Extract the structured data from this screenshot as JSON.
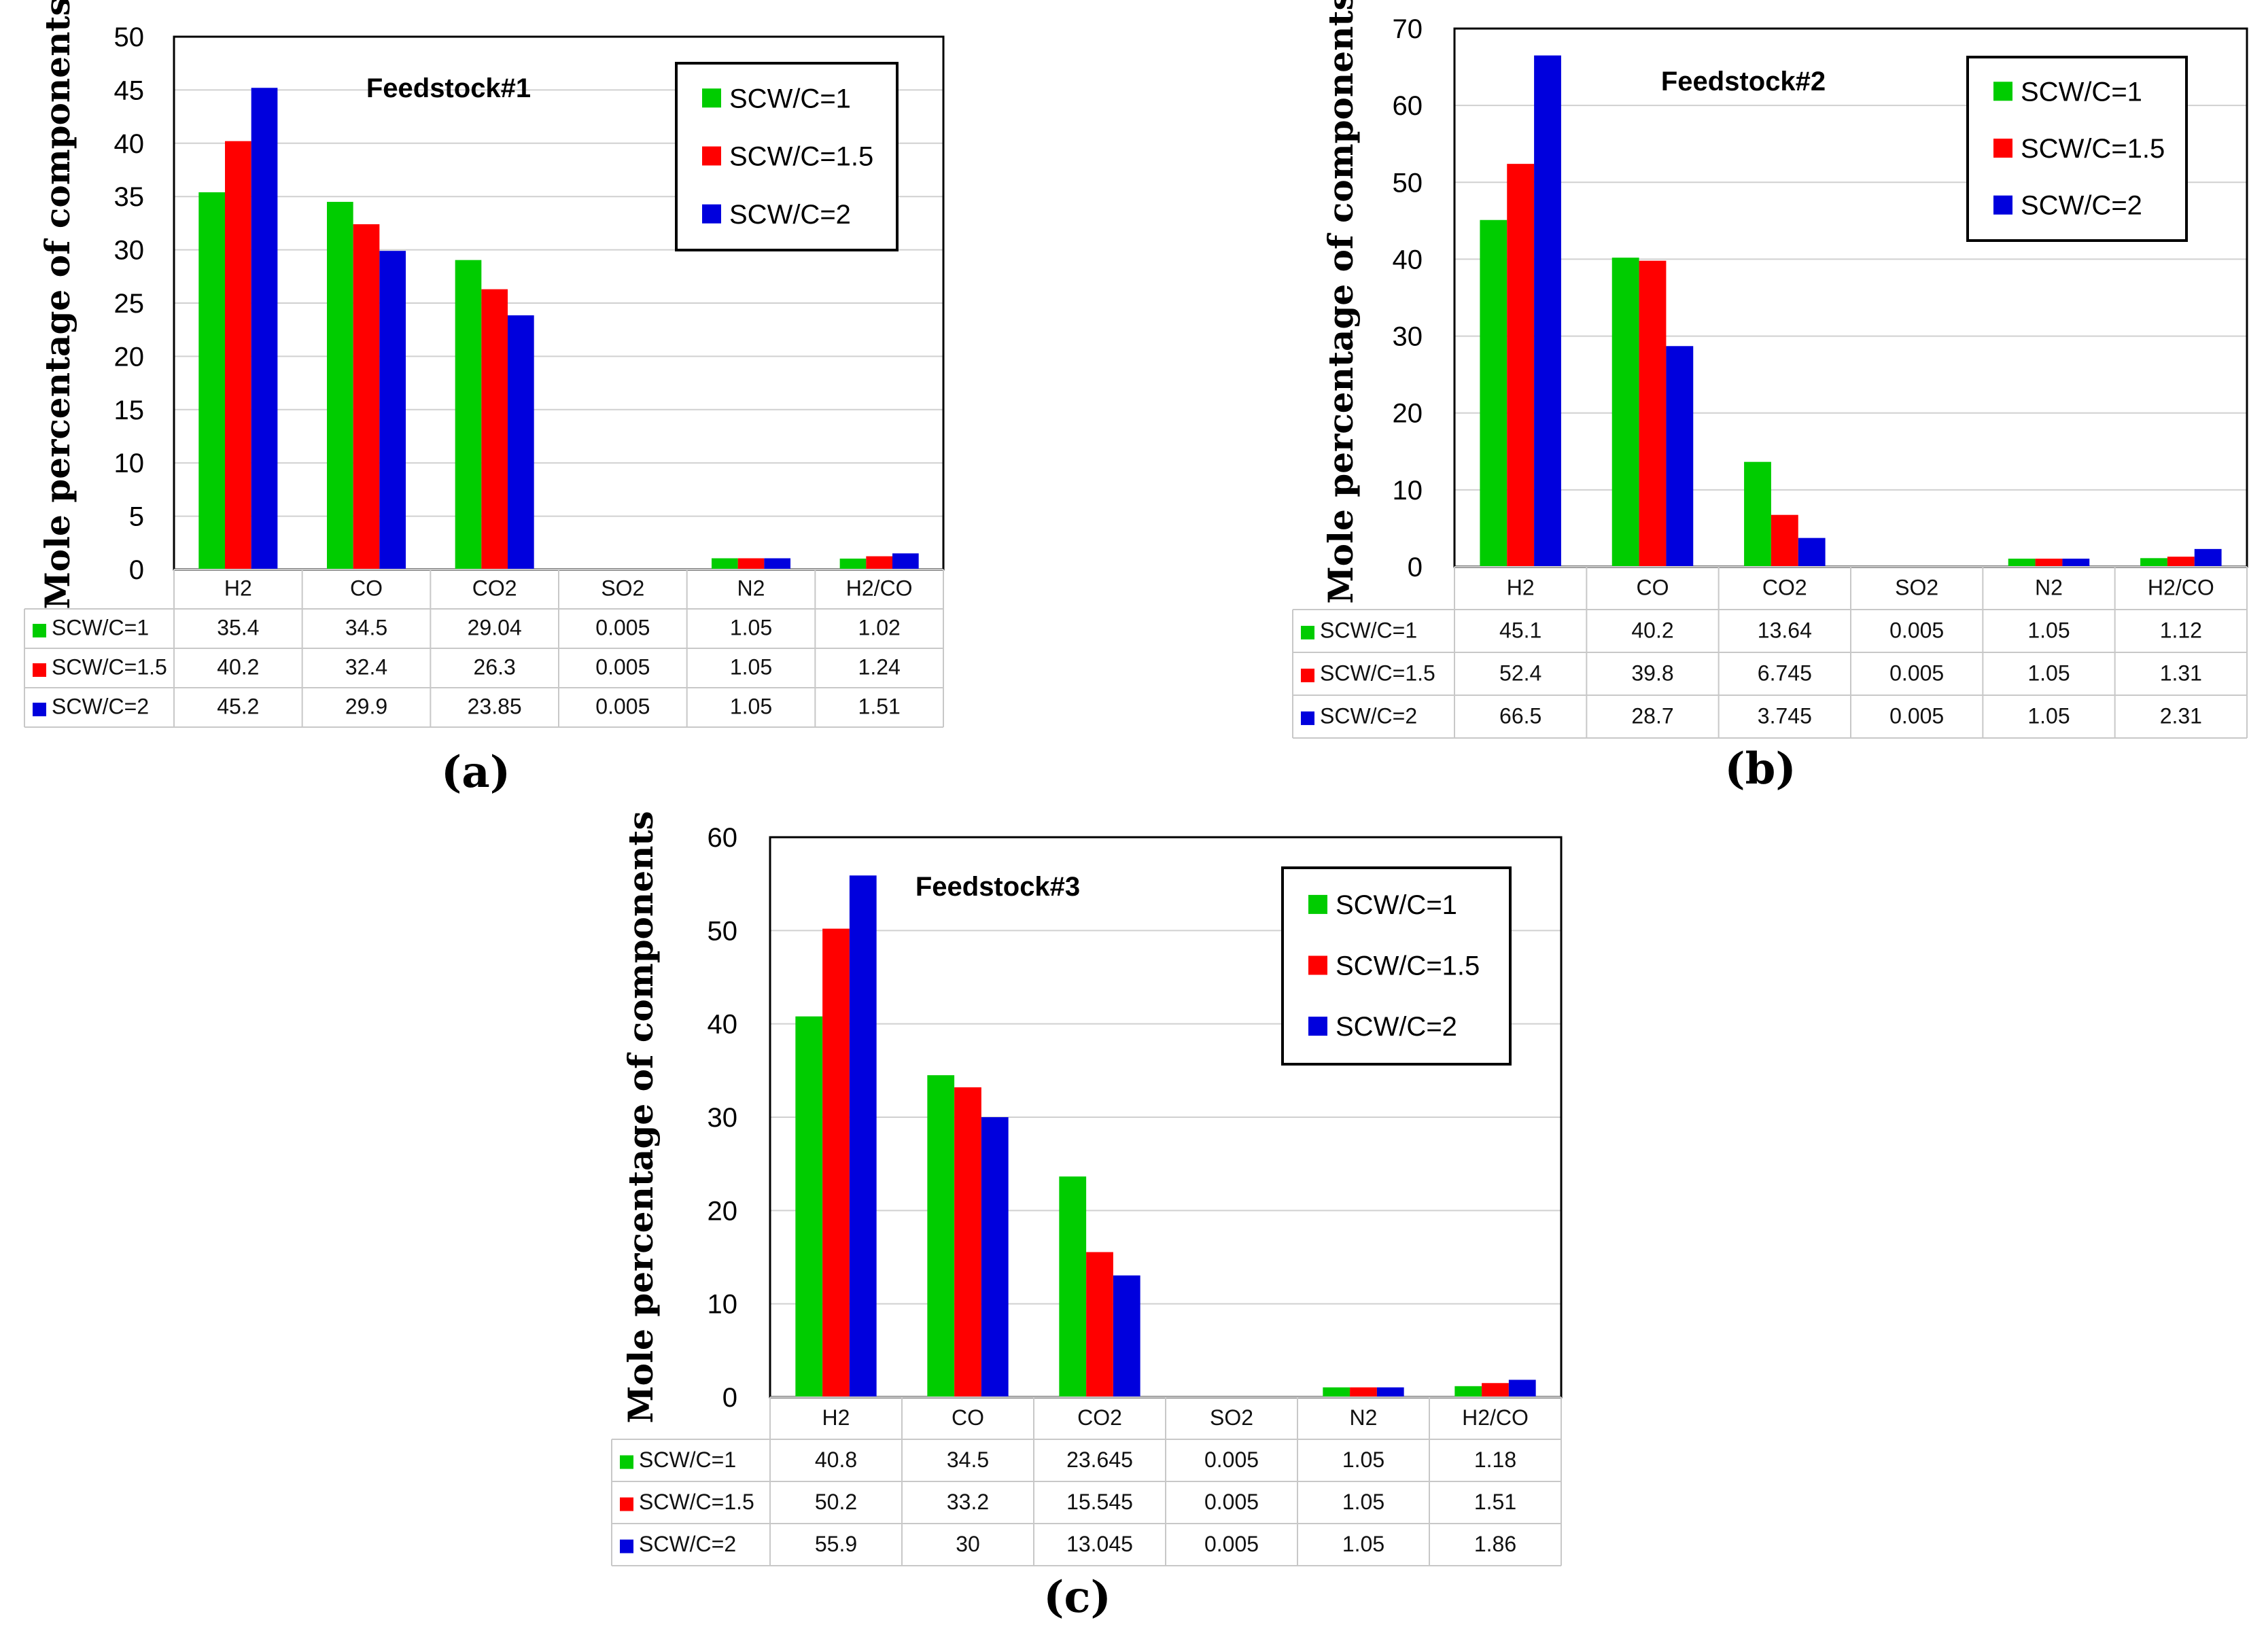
{
  "colors": {
    "SCW/C=1": "#00cc00",
    "SCW/C=1.5": "#ff0000",
    "SCW/C=2": "#0000dd"
  },
  "chart_data": [
    {
      "type": "bar",
      "title": "Feedstock#1",
      "caption": "(a)",
      "ylabel": "Mole percentage of components",
      "ylim": [
        0,
        50
      ],
      "yticks": [
        0,
        5,
        10,
        15,
        20,
        25,
        30,
        35,
        40,
        45,
        50
      ],
      "categories": [
        "H2",
        "CO",
        "CO2",
        "SO2",
        "N2",
        "H2/CO"
      ],
      "legend_position": "top-right",
      "series": [
        {
          "name": "SCW/C=1",
          "values": [
            35.4,
            34.5,
            29.04,
            0.005,
            1.05,
            1.02
          ],
          "labels": [
            "35.4",
            "34.5",
            "29.04",
            "0.005",
            "1.05",
            "1.02"
          ]
        },
        {
          "name": "SCW/C=1.5",
          "values": [
            40.2,
            32.4,
            26.3,
            0.005,
            1.05,
            1.24
          ],
          "labels": [
            "40.2",
            "32.4",
            "26.3",
            "0.005",
            "1.05",
            "1.24"
          ]
        },
        {
          "name": "SCW/C=2",
          "values": [
            45.2,
            29.9,
            23.85,
            0.005,
            1.05,
            1.51
          ],
          "labels": [
            "45.2",
            "29.9",
            "23.85",
            "0.005",
            "1.05",
            "1.51"
          ]
        }
      ]
    },
    {
      "type": "bar",
      "title": "Feedstock#2",
      "caption": "(b)",
      "ylabel": "Mole percentage of components",
      "ylim": [
        0,
        70
      ],
      "yticks": [
        0,
        10,
        20,
        30,
        40,
        50,
        60,
        70
      ],
      "categories": [
        "H2",
        "CO",
        "CO2",
        "SO2",
        "N2",
        "H2/CO"
      ],
      "legend_position": "top-right",
      "series": [
        {
          "name": "SCW/C=1",
          "values": [
            45.1,
            40.2,
            13.64,
            0.005,
            1.05,
            1.12
          ],
          "labels": [
            "45.1",
            "40.2",
            "13.64",
            "0.005",
            "1.05",
            "1.12"
          ]
        },
        {
          "name": "SCW/C=1.5",
          "values": [
            52.4,
            39.8,
            6.745,
            0.005,
            1.05,
            1.31
          ],
          "labels": [
            "52.4",
            "39.8",
            "6.745",
            "0.005",
            "1.05",
            "1.31"
          ]
        },
        {
          "name": "SCW/C=2",
          "values": [
            66.5,
            28.7,
            3.745,
            0.005,
            1.05,
            2.31
          ],
          "labels": [
            "66.5",
            "28.7",
            "3.745",
            "0.005",
            "1.05",
            "2.31"
          ]
        }
      ]
    },
    {
      "type": "bar",
      "title": "Feedstock#3",
      "caption": "(c)",
      "ylabel": "Mole percentage of components",
      "ylim": [
        0,
        60
      ],
      "yticks": [
        0,
        10,
        20,
        30,
        40,
        50,
        60
      ],
      "categories": [
        "H2",
        "CO",
        "CO2",
        "SO2",
        "N2",
        "H2/CO"
      ],
      "legend_position": "top-right",
      "series": [
        {
          "name": "SCW/C=1",
          "values": [
            40.8,
            34.5,
            23.645,
            0.005,
            1.05,
            1.18
          ],
          "labels": [
            "40.8",
            "34.5",
            "23.645",
            "0.005",
            "1.05",
            "1.18"
          ]
        },
        {
          "name": "SCW/C=1.5",
          "values": [
            50.2,
            33.2,
            15.545,
            0.005,
            1.05,
            1.51
          ],
          "labels": [
            "50.2",
            "33.2",
            "15.545",
            "0.005",
            "1.05",
            "1.51"
          ]
        },
        {
          "name": "SCW/C=2",
          "values": [
            55.9,
            30,
            13.045,
            0.005,
            1.05,
            1.86
          ],
          "labels": [
            "55.9",
            "30",
            "13.045",
            "0.005",
            "1.05",
            "1.86"
          ]
        }
      ]
    }
  ]
}
